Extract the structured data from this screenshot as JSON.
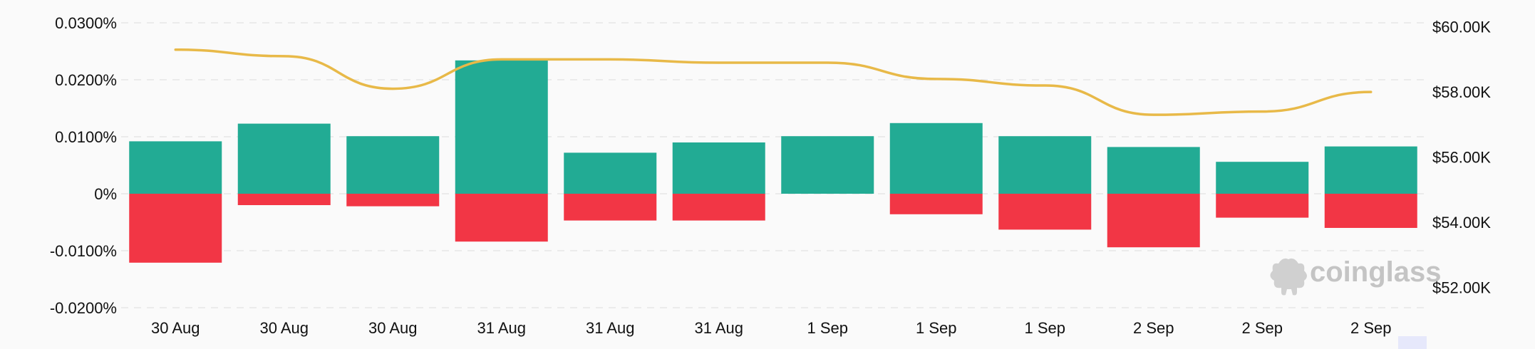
{
  "chart_data": {
    "type": "bar",
    "categories": [
      "30 Aug",
      "30 Aug",
      "30 Aug",
      "31 Aug",
      "31 Aug",
      "31 Aug",
      "1 Sep",
      "1 Sep",
      "1 Sep",
      "2 Sep",
      "2 Sep",
      "2 Sep"
    ],
    "series": [
      {
        "type": "bar",
        "color": "#22ab94",
        "values": [
          0.0092,
          0.0123,
          0.0101,
          0.0234,
          0.0072,
          0.009,
          0.0101,
          0.0124,
          0.0101,
          0.0082,
          0.0056,
          0.0083
        ]
      },
      {
        "type": "bar",
        "color": "#f23645",
        "values": [
          -0.0121,
          -0.002,
          -0.0022,
          -0.0084,
          -0.0047,
          -0.0047,
          0,
          -0.0036,
          -0.0063,
          -0.0094,
          -0.0042,
          -0.006
        ]
      },
      {
        "type": "line",
        "axis": "right",
        "color": "#e8b948",
        "values": [
          59300,
          59100,
          58100,
          59000,
          59000,
          58900,
          58900,
          58400,
          58200,
          57300,
          57400,
          58000
        ]
      }
    ],
    "y_left": {
      "ticks": [
        0.03,
        0.02,
        0.01,
        0,
        -0.01,
        -0.02
      ],
      "tick_labels": [
        "0.0300%",
        "0.0200%",
        "0.0100%",
        "0%",
        "-0.0100%",
        "-0.0200%"
      ],
      "ylim": [
        -0.02,
        0.03
      ]
    },
    "y_right": {
      "ticks": [
        60000,
        58000,
        56000,
        54000,
        52000
      ],
      "tick_labels": [
        "$60.00K",
        "$58.00K",
        "$56.00K",
        "$54.00K",
        "$52.00K"
      ],
      "ylim": [
        51200,
        60300
      ]
    },
    "grid": true,
    "legend": "none",
    "watermark": {
      "text": "coinglass",
      "icon": "coinglass-logo-icon"
    }
  }
}
